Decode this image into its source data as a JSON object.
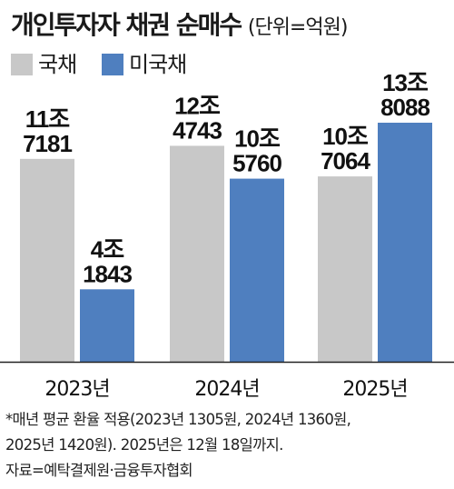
{
  "header": {
    "title": "개인투자자 채권 순매수",
    "unit": "(단위=억원)"
  },
  "legend": [
    {
      "label": "국채",
      "color": "#c8c8c8"
    },
    {
      "label": "미국채",
      "color": "#4f7fbf"
    }
  ],
  "chart_data": {
    "type": "bar",
    "categories": [
      "2023년",
      "2024년",
      "2025년"
    ],
    "series": [
      {
        "name": "국채",
        "color": "#c8c8c8",
        "values": [
          117181,
          124743,
          107064
        ],
        "labels": [
          [
            "11조",
            "7181"
          ],
          [
            "12조",
            "4743"
          ],
          [
            "10조",
            "7064"
          ]
        ]
      },
      {
        "name": "미국채",
        "color": "#4f7fbf",
        "values": [
          41843,
          105760,
          138088
        ],
        "labels": [
          [
            "4조",
            "1843"
          ],
          [
            "10조",
            "5760"
          ],
          [
            "13조",
            "8088"
          ]
        ]
      }
    ],
    "title": "개인투자자 채권 순매수",
    "unit": "억원",
    "ylim": [
      0,
      138088
    ],
    "grid": false,
    "legend_position": "top-left"
  },
  "footnote": {
    "lines": [
      "*매년 평균 환율 적용(2023년 1305원, 2024년 1360원,",
      "2025년 1420원). 2025년은 12월 18일까지.",
      "자료=예탁결제원·금융투자협회"
    ]
  }
}
